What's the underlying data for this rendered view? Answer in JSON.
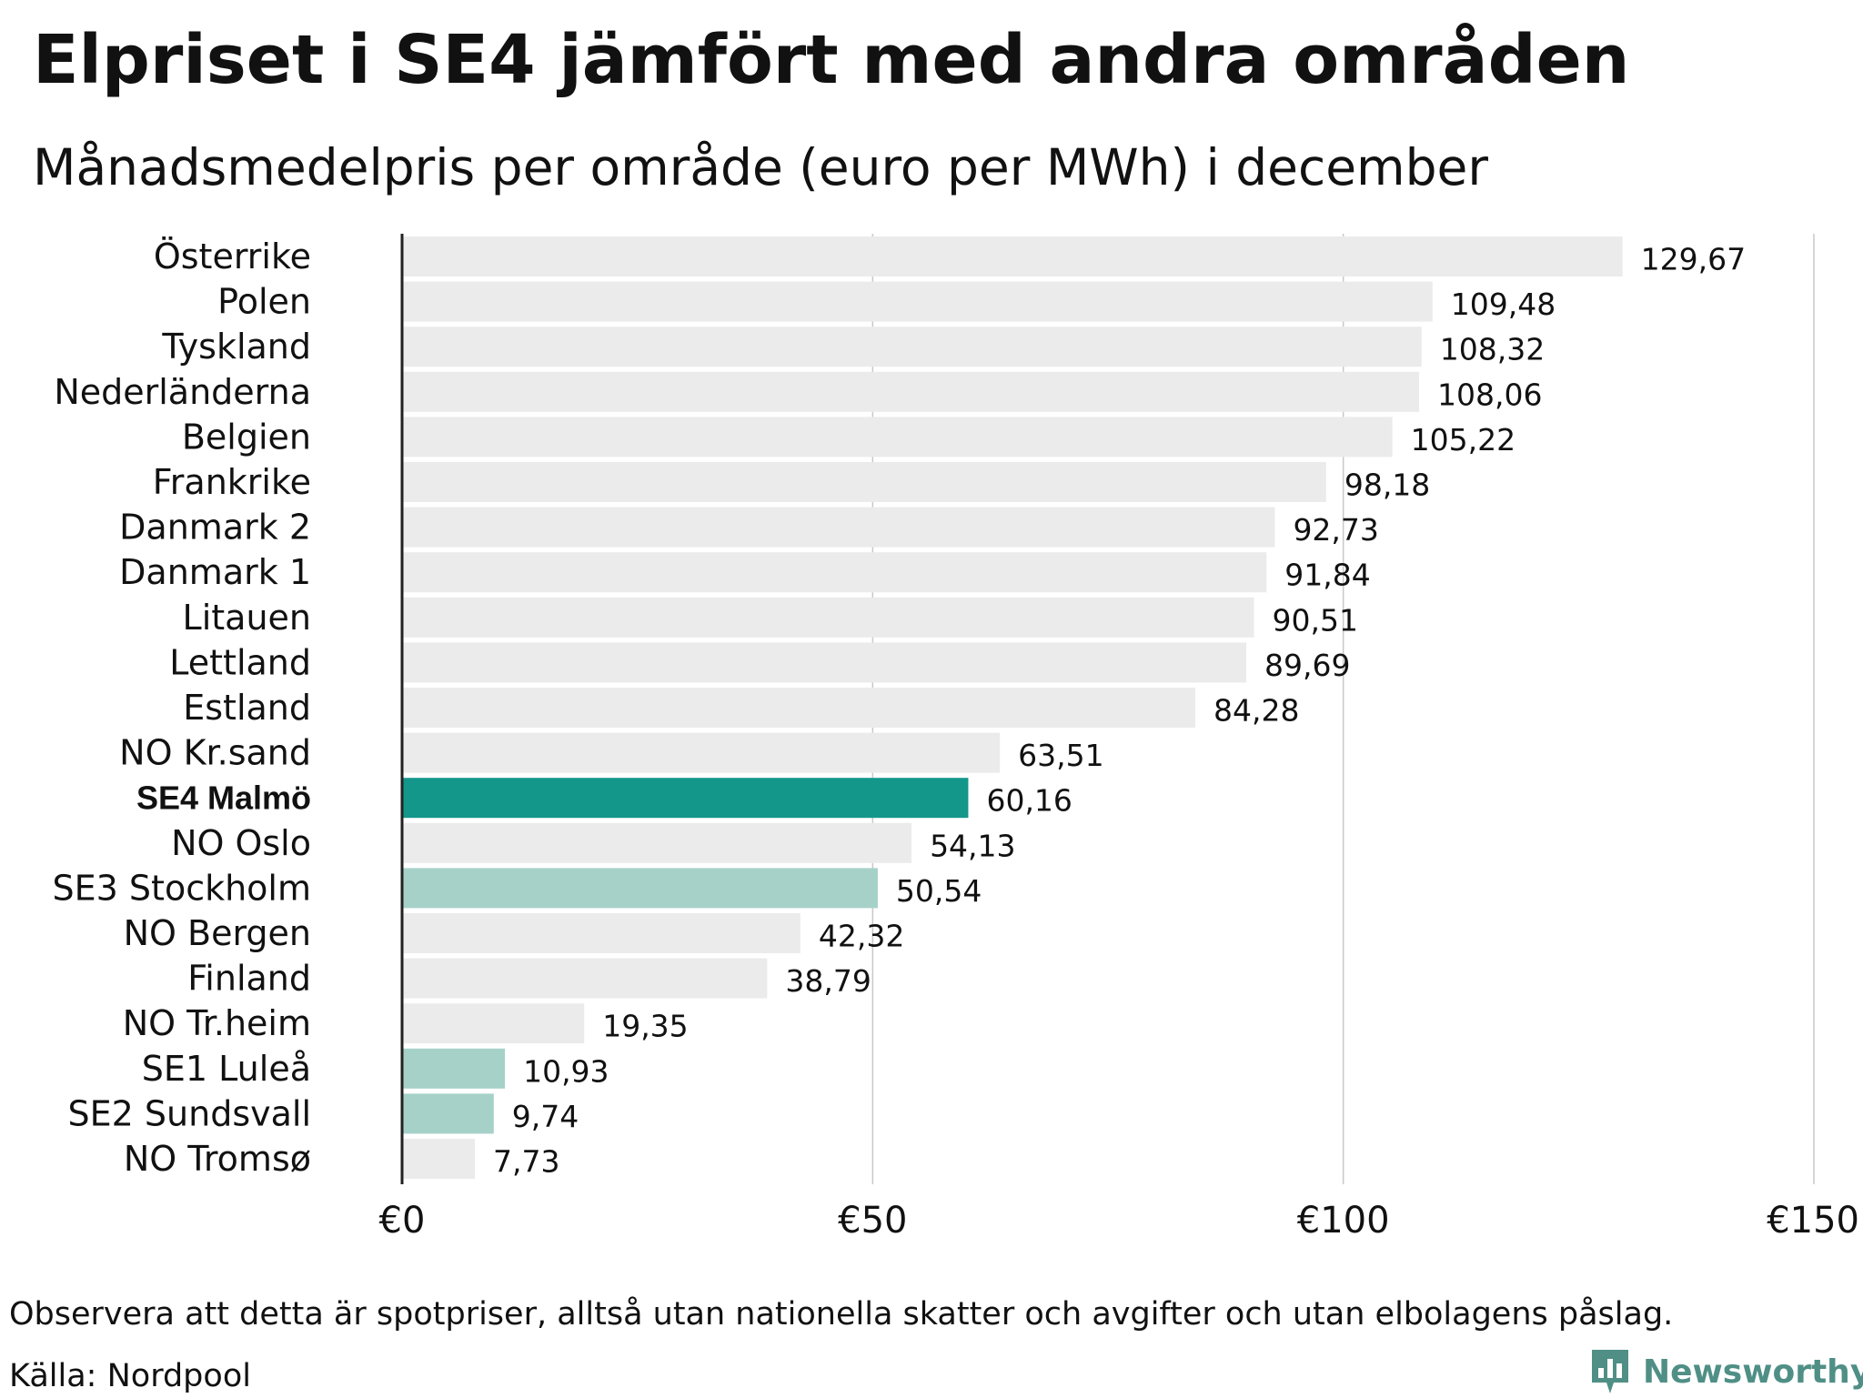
{
  "header": {
    "title": "Elpriset i SE4 jämfört med andra områden",
    "subtitle": "Månadsmedelpris per område (euro per MWh) i december"
  },
  "chart_data": {
    "type": "bar",
    "orientation": "horizontal",
    "categories": [
      "Österrike",
      "Polen",
      "Tyskland",
      "Nederländerna",
      "Belgien",
      "Frankrike",
      "Danmark  2",
      "Danmark  1",
      "Litauen",
      "Lettland",
      "Estland",
      "NO Kr.sand",
      "SE4 Malmö",
      "NO Oslo",
      "SE3  Stockholm",
      "NO Bergen",
      "Finland",
      "NO Tr.heim",
      "SE1  Luleå",
      "SE2  Sundsvall",
      "NO Tromsø"
    ],
    "values": [
      129.67,
      109.48,
      108.32,
      108.06,
      105.22,
      98.18,
      92.73,
      91.84,
      90.51,
      89.69,
      84.28,
      63.51,
      60.16,
      54.13,
      50.54,
      42.32,
      38.79,
      19.35,
      10.93,
      9.74,
      7.73
    ],
    "value_labels": [
      "129,67",
      "109,48",
      "108,32",
      "108,06",
      "105,22",
      "98,18",
      "92,73",
      "91,84",
      "90,51",
      "89,69",
      "84,28",
      "63,51",
      "60,16",
      "54,13",
      "50,54",
      "42,32",
      "38,79",
      "19,35",
      "10,93",
      "9,74",
      "7,73"
    ],
    "highlight": [
      "none",
      "none",
      "none",
      "none",
      "none",
      "none",
      "none",
      "none",
      "none",
      "none",
      "none",
      "none",
      "primary",
      "none",
      "secondary",
      "none",
      "none",
      "none",
      "secondary",
      "secondary",
      "none"
    ],
    "xlim": [
      0,
      150
    ],
    "xticks": [
      0,
      50,
      100,
      150
    ],
    "xtick_labels": [
      "€0",
      "€50",
      "€100",
      "€150"
    ],
    "grid": true,
    "colors": {
      "default": "#ebebeb",
      "primary": "#13978a",
      "secondary": "#a6d1c9",
      "gridline": "#c9c9c9",
      "axis": "#222222"
    }
  },
  "footer": {
    "note": "Observera att detta är spotpriser, alltså utan nationella skatter och avgifter och utan elbolagens påslag.",
    "source": "Källa: Nordpool",
    "brand": "Newsworthy",
    "brand_color": "#4f8f86",
    "brand_icon": "bar-chart-speech-bubble-icon"
  }
}
